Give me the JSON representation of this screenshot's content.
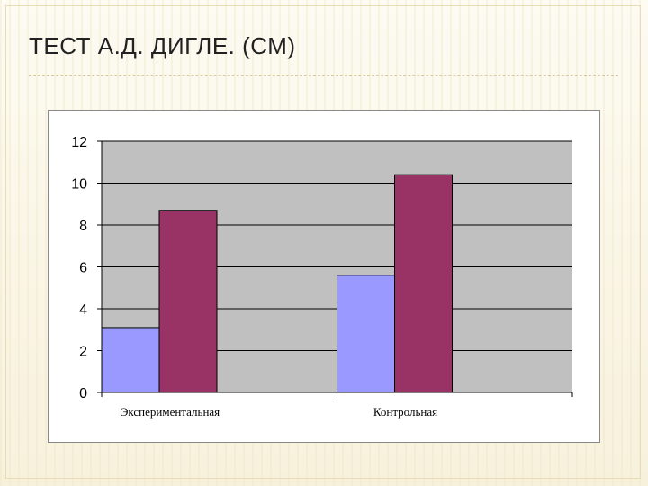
{
  "slide": {
    "title": "ТЕСТ А.Д. ДИГЛЕ. (СМ)"
  },
  "chart_data": {
    "type": "bar",
    "categories": [
      "Экспериментальная",
      "Контрольная"
    ],
    "series": [
      {
        "values": [
          3.1,
          5.6
        ],
        "color": "#9999ff"
      },
      {
        "values": [
          8.7,
          10.4
        ],
        "color": "#993366"
      }
    ],
    "ylim": [
      0,
      12
    ],
    "yticks": [
      0,
      2,
      4,
      6,
      8,
      10,
      12
    ],
    "grid": true,
    "plot_background": "#c0c0c0",
    "legend": "none"
  }
}
